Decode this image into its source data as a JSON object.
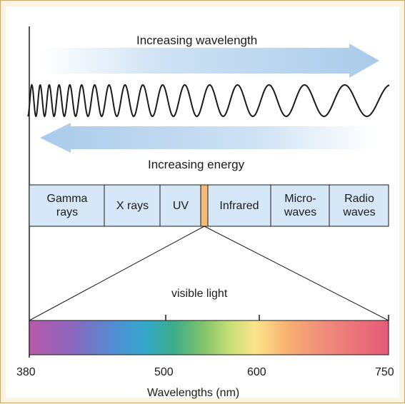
{
  "arrows": {
    "wavelength_label": "Increasing wavelength",
    "energy_label": "Increasing energy",
    "arrow_color": "#a9cbea"
  },
  "spectrum_bands": [
    {
      "label": "Gamma\nrays"
    },
    {
      "label": "X rays"
    },
    {
      "label": "UV"
    },
    {
      "label": "Infrared"
    },
    {
      "label": "Micro-\nwaves"
    },
    {
      "label": "Radio\nwaves"
    }
  ],
  "band_fill_color": "#d6e8f7",
  "visible_band_color": "#f5b97a",
  "visible_light_label": "visible light",
  "scale": {
    "ticks": [
      "380",
      "500",
      "600",
      "750"
    ],
    "axis_label": "Wavelengths (nm)"
  },
  "colors": {
    "frame_background": "#fdf3e3",
    "frame_border": "#c9a86a"
  }
}
